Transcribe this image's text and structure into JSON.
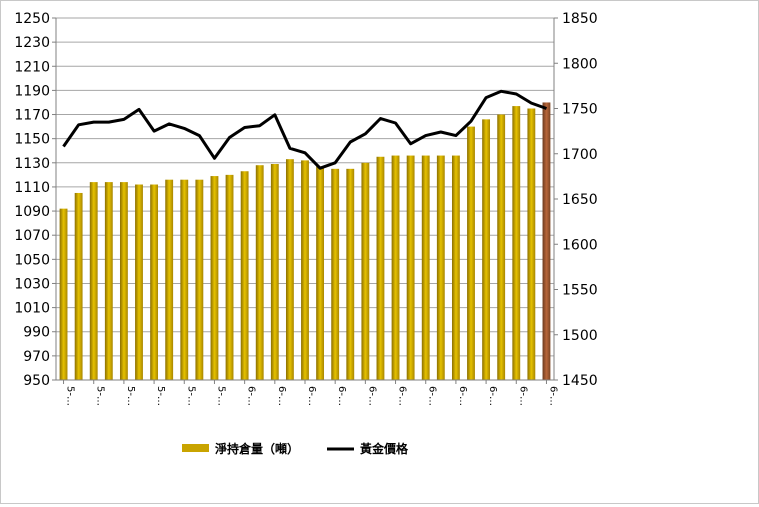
{
  "chart_data": {
    "type": "bar+line",
    "title": "",
    "xlabel": "",
    "ylabel_left": "",
    "ylabel_right": "",
    "y_left": {
      "min": 950,
      "max": 1250,
      "step": 20
    },
    "y_right": {
      "min": 1450,
      "max": 1850,
      "step": 50
    },
    "x_tick_labels": [
      "5-…",
      "5-…",
      "5-…",
      "5-…",
      "5-…",
      "5-…",
      "6-…",
      "6-…",
      "6-…",
      "6-…",
      "6-…",
      "6-…",
      "6-…",
      "6-…",
      "6-…",
      "6-…",
      "6-…"
    ],
    "grid": "horizontal",
    "legend_position": "bottom",
    "colors": {
      "bar": "#C9A400",
      "bar_highlight": "#A0522D",
      "line": "#000000",
      "grid": "#a6a6a6"
    },
    "series": [
      {
        "name": "淨持倉量（噸）",
        "type": "bar",
        "axis": "left",
        "values": [
          1092,
          1105,
          1114,
          1114,
          1114,
          1112,
          1112,
          1116,
          1116,
          1116,
          1119,
          1120,
          1123,
          1128,
          1129,
          1133,
          1132,
          1127,
          1125,
          1125,
          1130,
          1135,
          1136,
          1136,
          1136,
          1136,
          1136,
          1160,
          1166,
          1170,
          1177,
          1175,
          1180
        ]
      },
      {
        "name": "黃金價格",
        "type": "line",
        "axis": "right",
        "values": [
          1708,
          1732,
          1735,
          1735,
          1738,
          1749,
          1725,
          1733,
          1728,
          1720,
          1695,
          1718,
          1729,
          1731,
          1743,
          1706,
          1701,
          1684,
          1690,
          1713,
          1722,
          1739,
          1734,
          1711,
          1720,
          1724,
          1720,
          1736,
          1762,
          1769,
          1766,
          1756,
          1750
        ]
      }
    ]
  }
}
